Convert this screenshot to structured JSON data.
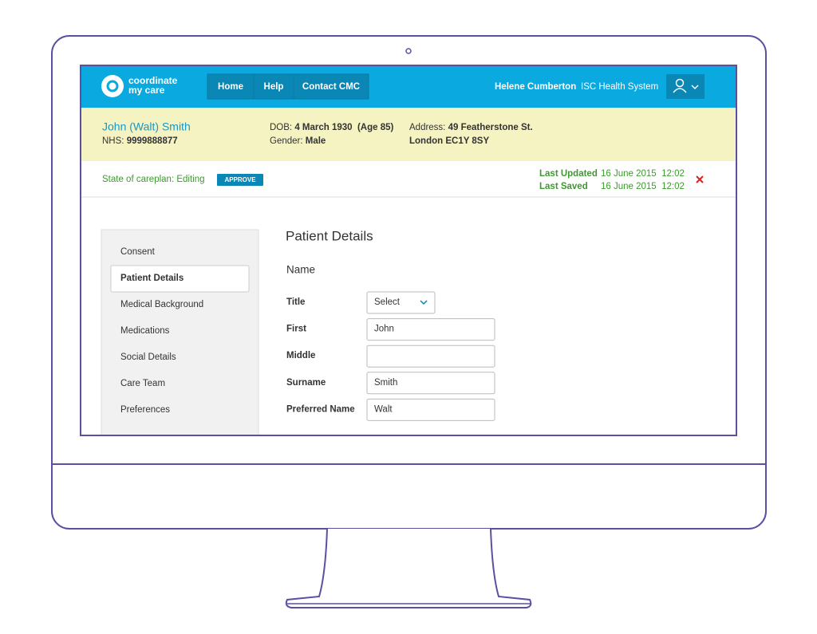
{
  "header": {
    "logo": [
      "coordinate",
      "my care"
    ],
    "nav": [
      "Home",
      "Help",
      "Contact CMC"
    ],
    "user": "Helene Cumberton",
    "organisation": "ISC Health System"
  },
  "patient": {
    "name": "John (Walt) Smith",
    "nhs_label": "NHS:",
    "nhs": "9999888877",
    "dob_label": "DOB:",
    "dob": "4 March 1930",
    "age": "(Age 85)",
    "gender_label": "Gender:",
    "gender": "Male",
    "address_label": "Address:",
    "address": [
      "49 Featherstone St.",
      "London EC1Y 8SY"
    ]
  },
  "status": {
    "state": "State of careplan: Editing",
    "approve": "APPROVE",
    "last_updated_label": "Last Updated",
    "last_updated": "16 June 2015  12:02",
    "last_saved_label": "Last Saved",
    "last_saved": "16 June 2015  12:02"
  },
  "sidebar": [
    "Consent",
    "Patient Details",
    "Medical Background",
    "Medications",
    "Social Details",
    "Care Team",
    "Preferences"
  ],
  "form": {
    "title": "Patient Details",
    "section": "Name",
    "fields": [
      {
        "label": "Title",
        "value": "Select"
      },
      {
        "label": "First",
        "value": "John"
      },
      {
        "label": "Middle"
      },
      {
        "label": "Surname",
        "value": "Smith"
      },
      {
        "label": "Preferred Name",
        "value": "Walt"
      }
    ]
  }
}
